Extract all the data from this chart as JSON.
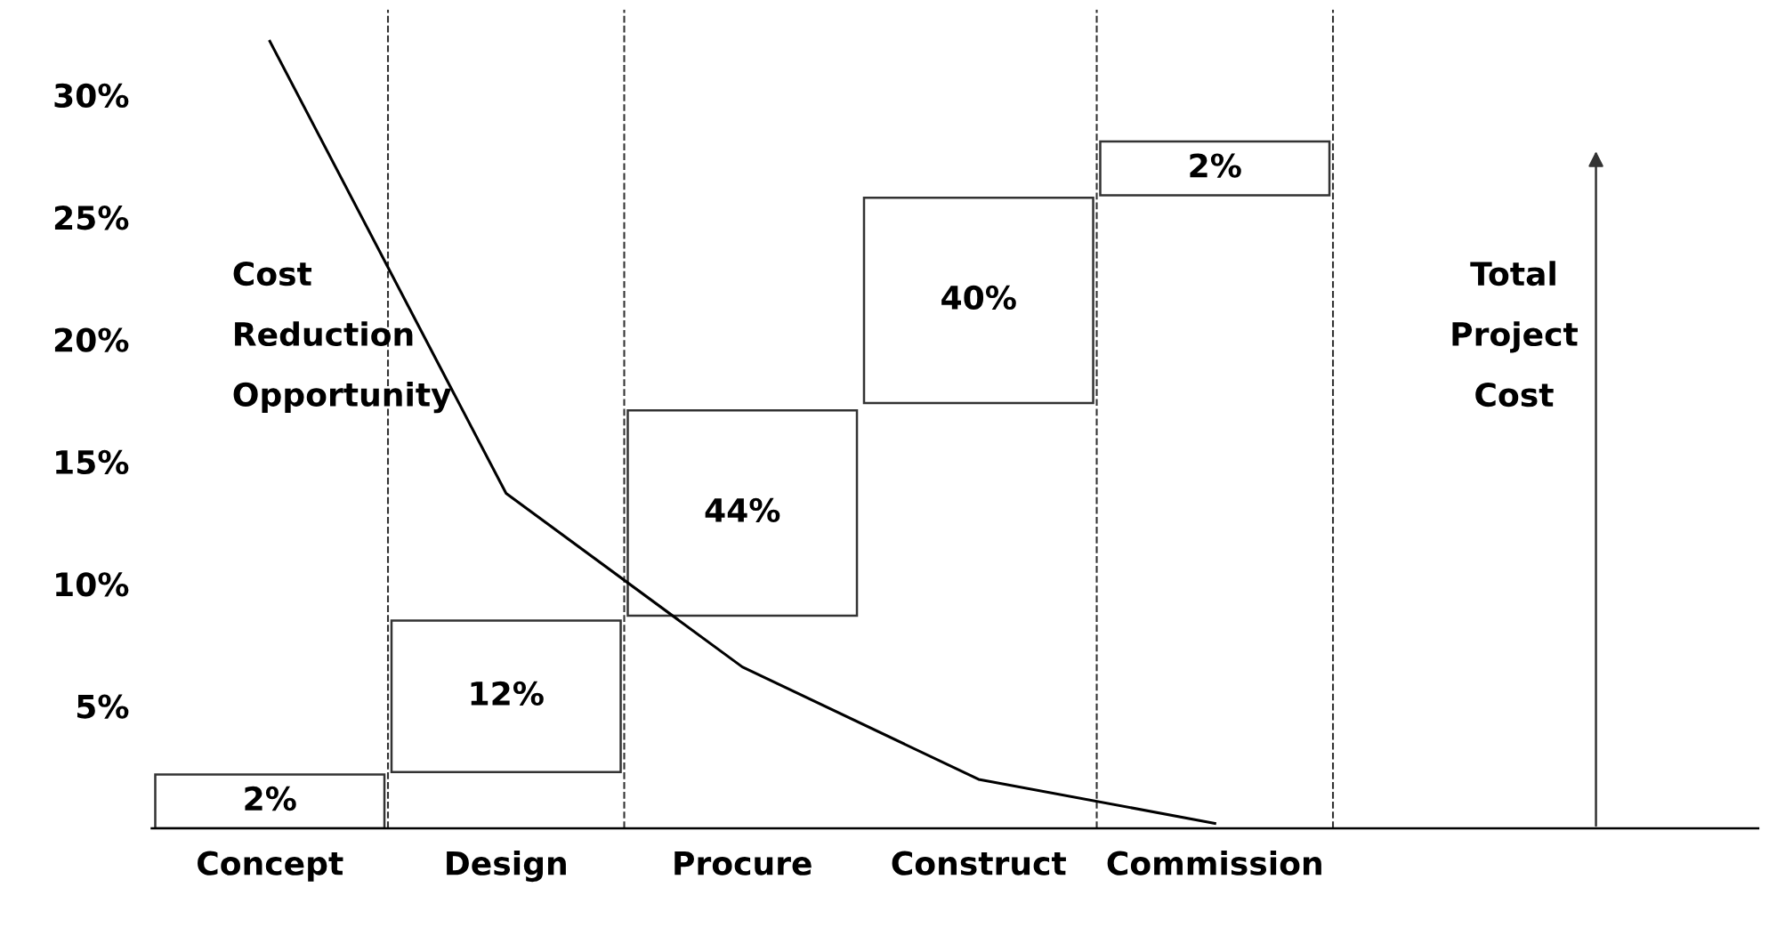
{
  "chart_data": {
    "type": "bar",
    "categories": [
      "Concept",
      "Design",
      "Procure",
      "Construct",
      "Commission"
    ],
    "series": [
      {
        "color": "#ffffff",
        "base": [
          0,
          2.3,
          8.7,
          17.4,
          25.9
        ],
        "values": [
          2.2,
          6.2,
          8.4,
          8.4,
          2.2
        ]
      },
      {
        "type": "line",
        "color": "#000000",
        "values": [
          32.2,
          13.7,
          6.6,
          2.0,
          0.2
        ]
      }
    ],
    "ylim": [
      0,
      33.5
    ],
    "yticks": [
      {
        "value": 5,
        "label": "5%"
      },
      {
        "value": 10,
        "label": "10%"
      },
      {
        "value": 15,
        "label": "15%"
      },
      {
        "value": 20,
        "label": "20%"
      },
      {
        "value": 25,
        "label": "25%"
      },
      {
        "value": 30,
        "label": "30%"
      }
    ],
    "annotations": [
      "2%",
      "12%",
      "44%",
      "40%",
      "2%",
      "Cost\nReduction\nOpportunity",
      "Total\nProject\nCost"
    ],
    "grid": false,
    "legend": false
  }
}
